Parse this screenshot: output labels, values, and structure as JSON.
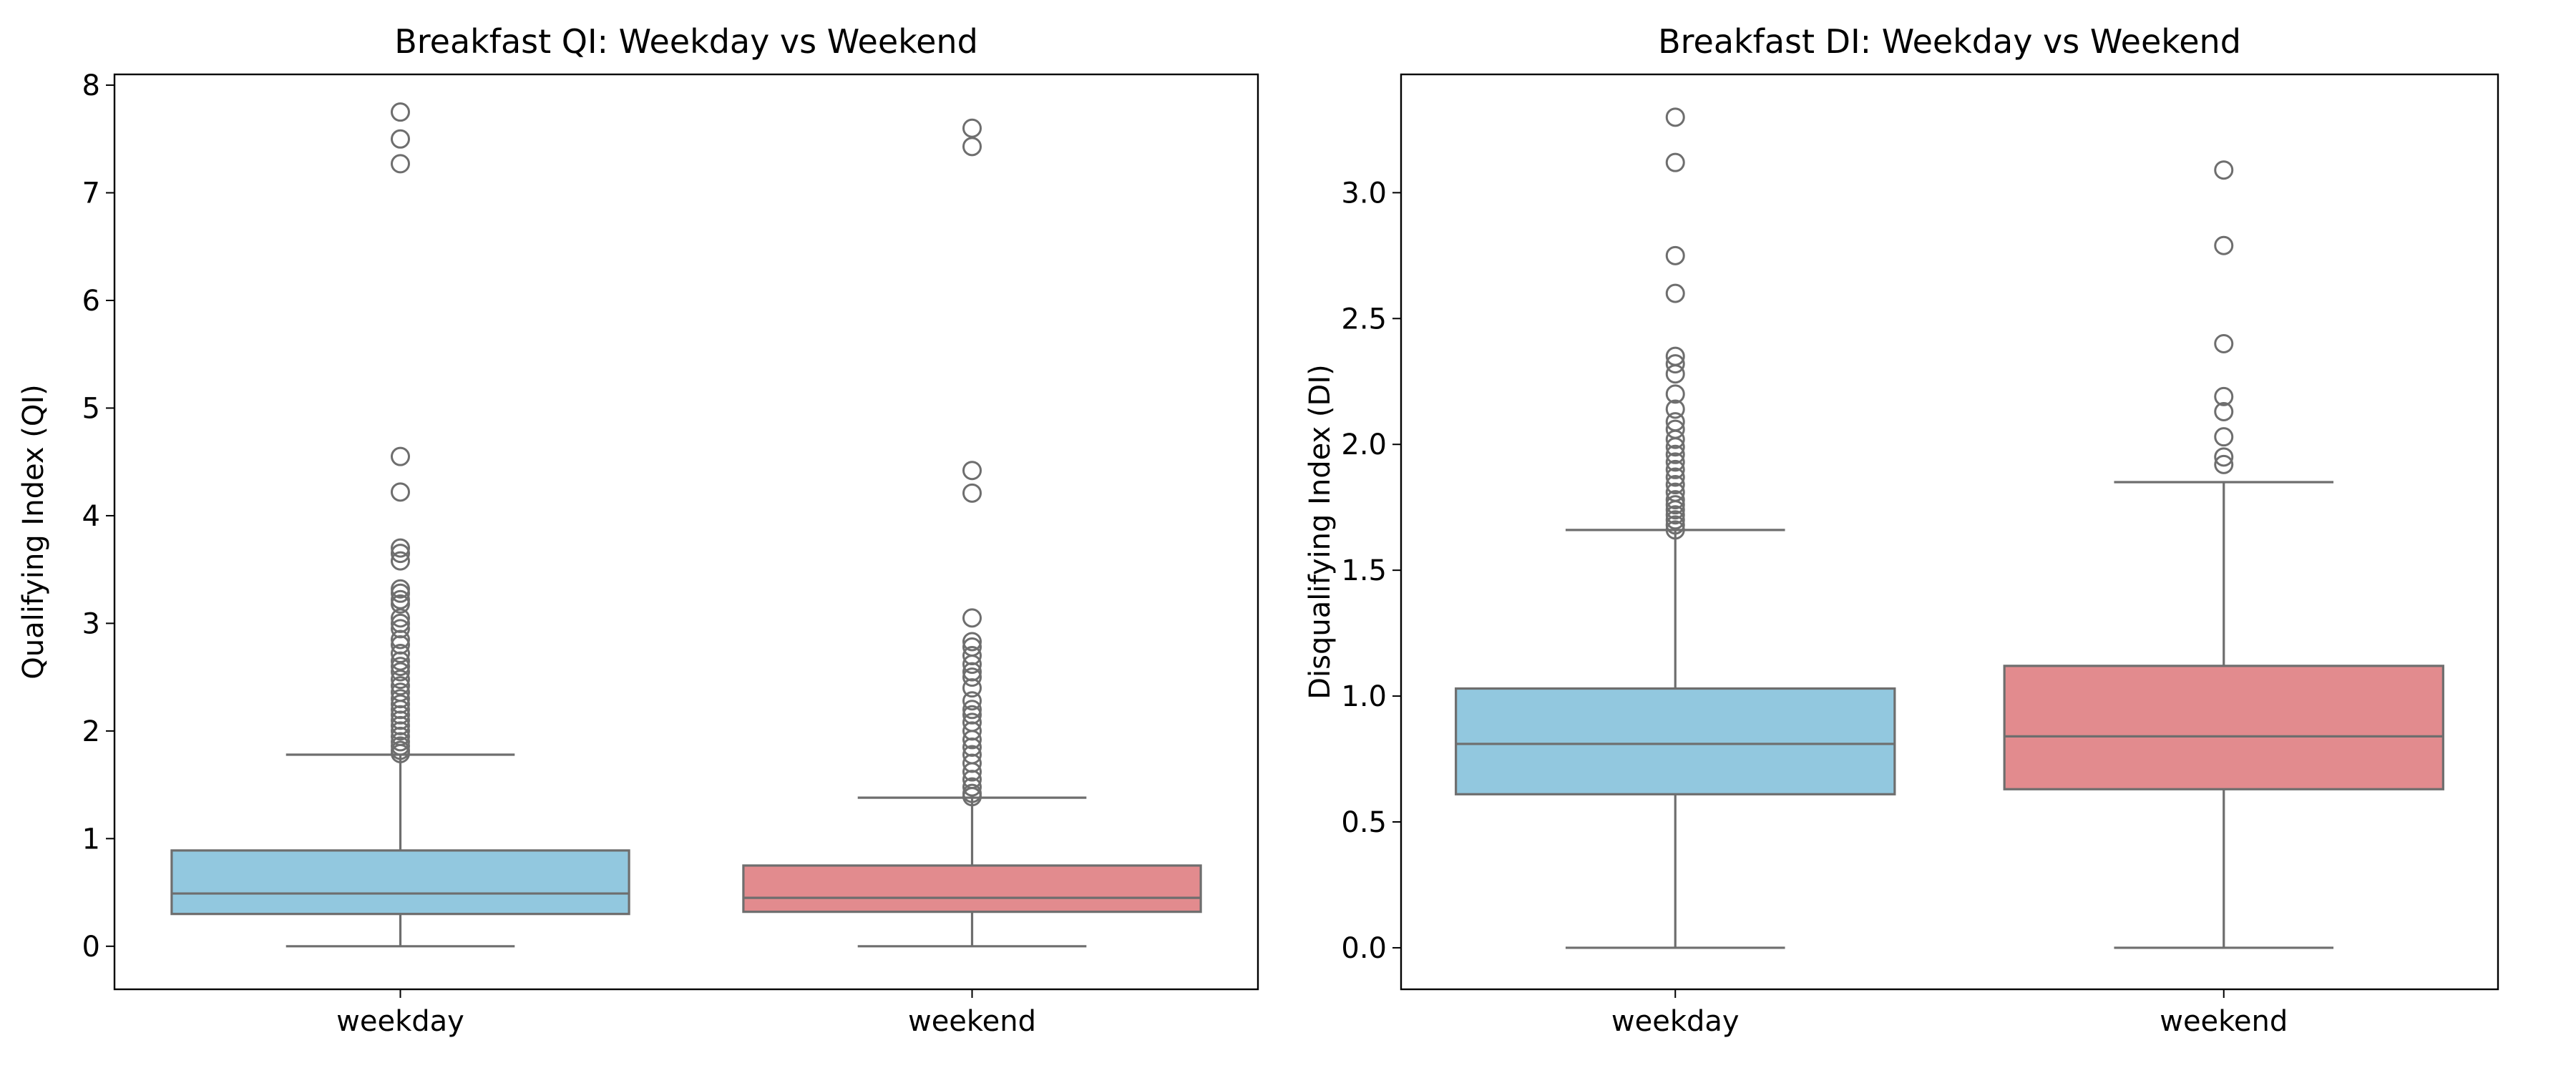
{
  "chart_data": [
    {
      "type": "box",
      "title": "Breakfast QI: Weekday vs Weekend",
      "xlabel": "",
      "ylabel": "Qualifying Index (QI)",
      "categories": [
        "weekday",
        "weekend"
      ],
      "ylim": [
        -0.4,
        8.1
      ],
      "yticks": [
        0,
        1,
        2,
        3,
        4,
        5,
        6,
        7,
        8
      ],
      "ytick_labels": [
        "0",
        "1",
        "2",
        "3",
        "4",
        "5",
        "6",
        "7",
        "8"
      ],
      "grid": false,
      "boxes": [
        {
          "category": "weekday",
          "color": "#92c8df",
          "whisker_low": 0.0,
          "q1": 0.3,
          "median": 0.49,
          "q3": 0.89,
          "whisker_high": 1.78,
          "outliers": [
            7.75,
            7.5,
            7.27,
            4.55,
            4.22,
            3.7,
            3.65,
            3.58,
            3.32,
            3.28,
            3.22,
            3.18,
            3.05,
            3.0,
            2.95,
            2.85,
            2.8,
            2.72,
            2.65,
            2.6,
            2.55,
            2.48,
            2.42,
            2.36,
            2.3,
            2.25,
            2.2,
            2.15,
            2.1,
            2.05,
            2.0,
            1.95,
            1.9,
            1.86,
            1.82,
            1.79
          ]
        },
        {
          "category": "weekend",
          "color": "#e28b8e",
          "whisker_low": 0.0,
          "q1": 0.32,
          "median": 0.45,
          "q3": 0.75,
          "whisker_high": 1.38,
          "outliers": [
            7.6,
            7.43,
            4.42,
            4.21,
            3.05,
            2.83,
            2.78,
            2.7,
            2.62,
            2.55,
            2.5,
            2.4,
            2.28,
            2.2,
            2.15,
            2.08,
            2.0,
            1.92,
            1.85,
            1.78,
            1.7,
            1.62,
            1.55,
            1.48,
            1.42,
            1.39
          ]
        }
      ]
    },
    {
      "type": "box",
      "title": "Breakfast DI: Weekday vs Weekend",
      "xlabel": "",
      "ylabel": "Disqualifying Index (DI)",
      "categories": [
        "weekday",
        "weekend"
      ],
      "ylim": [
        -0.165,
        3.47
      ],
      "yticks": [
        0,
        0.5,
        1,
        1.5,
        2,
        2.5,
        3
      ],
      "ytick_labels": [
        "0.0",
        "0.5",
        "1.0",
        "1.5",
        "2.0",
        "2.5",
        "3.0"
      ],
      "grid": false,
      "boxes": [
        {
          "category": "weekday",
          "color": "#92c8df",
          "whisker_low": 0.0,
          "q1": 0.61,
          "median": 0.81,
          "q3": 1.03,
          "whisker_high": 1.66,
          "outliers": [
            3.3,
            3.12,
            2.75,
            2.6,
            2.35,
            2.32,
            2.28,
            2.2,
            2.14,
            2.09,
            2.06,
            2.02,
            1.99,
            1.96,
            1.93,
            1.9,
            1.87,
            1.84,
            1.81,
            1.78,
            1.76,
            1.74,
            1.72,
            1.7,
            1.68,
            1.66
          ]
        },
        {
          "category": "weekend",
          "color": "#e28b8e",
          "whisker_low": 0.0,
          "q1": 0.63,
          "median": 0.84,
          "q3": 1.12,
          "whisker_high": 1.85,
          "outliers": [
            3.09,
            2.79,
            2.4,
            2.19,
            2.13,
            2.03,
            1.95,
            1.92
          ]
        }
      ]
    }
  ]
}
